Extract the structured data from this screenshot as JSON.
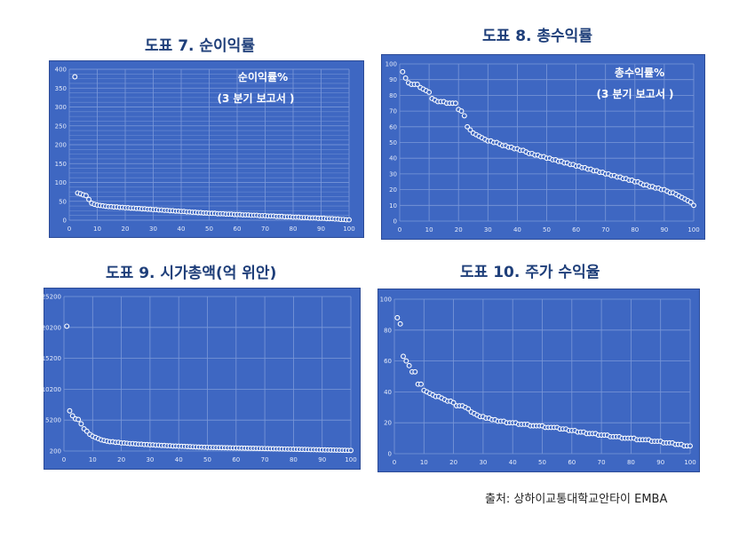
{
  "source": "출처:  상하이교통대학교안타이 EMBA",
  "charts": [
    {
      "heading": "도표 7.  순이익률"
    },
    {
      "heading": "도표 8.  총수익률"
    },
    {
      "heading": "도표 9.  시가총액(억 위안)"
    },
    {
      "heading": "도표 10.  주가 수익율"
    }
  ],
  "chart_data": [
    {
      "type": "scatter",
      "title": "도표 7.  순이익률",
      "annotation": [
        "순이익률%",
        "(3 분기 보고서 )"
      ],
      "xlim": [
        0,
        100
      ],
      "ylim": [
        0,
        400
      ],
      "xticks": [
        0,
        10,
        20,
        30,
        40,
        50,
        60,
        70,
        80,
        90,
        100
      ],
      "yticks": [
        0,
        50,
        100,
        150,
        200,
        250,
        300,
        350,
        400
      ],
      "grid": true,
      "x_start": 2,
      "values": [
        380,
        72,
        70,
        67,
        65,
        55,
        45,
        42,
        40,
        39,
        38,
        37,
        36,
        36,
        35,
        35,
        34,
        34,
        33,
        33,
        32,
        32,
        31,
        31,
        30,
        30,
        29,
        29,
        28,
        28,
        27,
        27,
        26,
        26,
        25,
        25,
        24,
        24,
        23,
        23,
        22,
        22,
        21,
        21,
        20,
        20,
        19,
        19,
        18,
        18,
        18,
        17,
        17,
        17,
        16,
        16,
        16,
        15,
        15,
        15,
        14,
        14,
        14,
        13,
        13,
        13,
        12,
        12,
        12,
        11,
        11,
        11,
        10,
        10,
        10,
        9,
        9,
        9,
        8,
        8,
        8,
        7,
        7,
        7,
        6,
        6,
        6,
        5,
        5,
        5,
        4,
        4,
        4,
        3,
        3,
        2,
        2,
        1,
        1
      ]
    },
    {
      "type": "scatter",
      "title": "도표 8.  총수익률",
      "annotation": [
        "총수익률%",
        "(3 분기  보고서 )"
      ],
      "xlim": [
        0,
        100
      ],
      "ylim": [
        0,
        100
      ],
      "xticks": [
        0,
        10,
        20,
        30,
        40,
        50,
        60,
        70,
        80,
        90,
        100
      ],
      "yticks": [
        0,
        10,
        20,
        30,
        40,
        50,
        60,
        70,
        80,
        90,
        100
      ],
      "grid": false,
      "x_start": 1,
      "values": [
        95,
        91,
        88,
        87,
        87,
        87,
        85,
        84,
        83,
        82,
        78,
        77,
        76,
        76,
        76,
        75,
        75,
        75,
        75,
        71,
        70,
        67,
        60,
        58,
        56,
        55,
        54,
        53,
        52,
        51,
        51,
        50,
        50,
        49,
        48,
        48,
        47,
        47,
        46,
        46,
        45,
        45,
        44,
        43,
        43,
        42,
        42,
        41,
        41,
        40,
        40,
        39,
        39,
        38,
        38,
        37,
        37,
        36,
        36,
        35,
        35,
        34,
        34,
        33,
        33,
        32,
        32,
        31,
        31,
        30,
        30,
        29,
        29,
        28,
        28,
        27,
        27,
        26,
        26,
        25,
        25,
        24,
        23,
        23,
        22,
        22,
        21,
        21,
        20,
        20,
        19,
        18,
        18,
        17,
        16,
        15,
        14,
        13,
        12,
        10
      ]
    },
    {
      "type": "scatter",
      "title": "도표 9.  시가총액(억 위안)",
      "xlim": [
        0,
        100
      ],
      "ylim": [
        200,
        25200
      ],
      "xticks": [
        0,
        10,
        20,
        30,
        40,
        50,
        60,
        70,
        80,
        90,
        100
      ],
      "yticks": [
        200,
        5200,
        10200,
        15200,
        20200,
        25200
      ],
      "grid": false,
      "x_start": 1,
      "values": [
        20400,
        6700,
        5900,
        5400,
        5300,
        4600,
        3800,
        3400,
        2900,
        2600,
        2400,
        2200,
        2000,
        1900,
        1800,
        1700,
        1700,
        1600,
        1600,
        1500,
        1500,
        1450,
        1400,
        1400,
        1350,
        1300,
        1300,
        1250,
        1250,
        1200,
        1200,
        1150,
        1150,
        1100,
        1100,
        1050,
        1050,
        1000,
        1000,
        980,
        960,
        940,
        920,
        900,
        880,
        860,
        840,
        820,
        800,
        790,
        780,
        770,
        760,
        750,
        740,
        730,
        720,
        710,
        700,
        690,
        680,
        670,
        660,
        650,
        640,
        630,
        620,
        610,
        600,
        590,
        580,
        570,
        560,
        550,
        540,
        530,
        520,
        510,
        500,
        490,
        480,
        470,
        460,
        450,
        440,
        430,
        420,
        410,
        400,
        390,
        380,
        370,
        360,
        350,
        340,
        330,
        320,
        310,
        300,
        290
      ]
    },
    {
      "type": "scatter",
      "title": "도표 10.  주가 수익율",
      "xlim": [
        0,
        100
      ],
      "ylim": [
        0,
        100
      ],
      "xticks": [
        0,
        10,
        20,
        30,
        40,
        50,
        60,
        70,
        80,
        90,
        100
      ],
      "yticks": [
        0,
        20,
        40,
        60,
        80,
        100
      ],
      "grid": false,
      "x_start": 1,
      "values": [
        88,
        84,
        63,
        60,
        57,
        53,
        53,
        45,
        45,
        41,
        40,
        39,
        38,
        37,
        37,
        36,
        35,
        34,
        34,
        33,
        31,
        31,
        31,
        30,
        29,
        27,
        26,
        25,
        24,
        24,
        23,
        23,
        22,
        22,
        21,
        21,
        21,
        20,
        20,
        20,
        20,
        19,
        19,
        19,
        19,
        18,
        18,
        18,
        18,
        18,
        17,
        17,
        17,
        17,
        17,
        16,
        16,
        16,
        15,
        15,
        15,
        14,
        14,
        14,
        13,
        13,
        13,
        13,
        12,
        12,
        12,
        12,
        11,
        11,
        11,
        11,
        10,
        10,
        10,
        10,
        10,
        9,
        9,
        9,
        9,
        9,
        8,
        8,
        8,
        8,
        7,
        7,
        7,
        7,
        6,
        6,
        6,
        5,
        5,
        5
      ]
    }
  ]
}
